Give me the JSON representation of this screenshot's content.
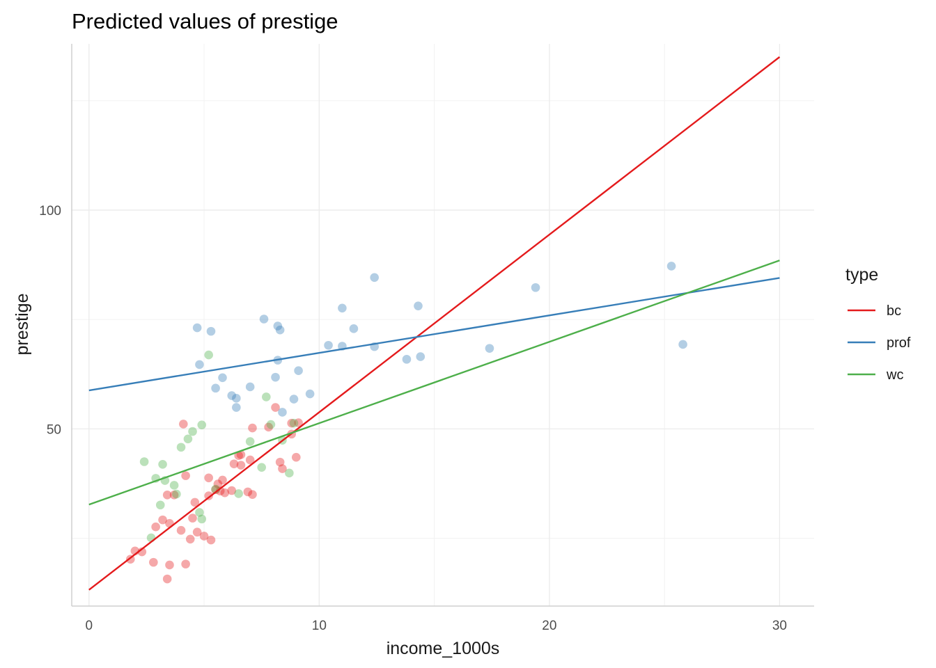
{
  "chart_data": {
    "type": "scatter",
    "title": "Predicted values of prestige",
    "xlabel": "income_1000s",
    "ylabel": "prestige",
    "xlim": [
      -0.75,
      31.5
    ],
    "ylim": [
      9.5,
      138
    ],
    "xticks": [
      0,
      10,
      20,
      30
    ],
    "yticks": [
      50,
      100
    ],
    "grid": true,
    "legend": {
      "title": "type",
      "position": "right",
      "entries": [
        "bc",
        "prof",
        "wc"
      ]
    },
    "colors": {
      "bc": "#e41a1c",
      "prof": "#377eb8",
      "wc": "#4daf4a"
    },
    "series": [
      {
        "name": "bc",
        "line": [
          [
            0,
            13.2
          ],
          [
            30,
            135.0
          ]
        ],
        "points": [
          [
            1.8,
            20.2
          ],
          [
            2.0,
            22.1
          ],
          [
            2.3,
            21.9
          ],
          [
            2.8,
            19.5
          ],
          [
            2.9,
            27.6
          ],
          [
            3.2,
            29.2
          ],
          [
            3.4,
            34.9
          ],
          [
            3.5,
            28.4
          ],
          [
            3.4,
            15.7
          ],
          [
            3.5,
            18.9
          ],
          [
            3.7,
            34.9
          ],
          [
            4.0,
            26.8
          ],
          [
            4.1,
            51.1
          ],
          [
            4.2,
            39.3
          ],
          [
            4.2,
            19.1
          ],
          [
            4.4,
            24.8
          ],
          [
            4.5,
            29.6
          ],
          [
            4.6,
            33.2
          ],
          [
            4.7,
            26.4
          ],
          [
            5.0,
            25.5
          ],
          [
            5.2,
            38.8
          ],
          [
            5.2,
            34.7
          ],
          [
            5.3,
            24.6
          ],
          [
            5.5,
            36.1
          ],
          [
            5.6,
            37.4
          ],
          [
            5.7,
            35.8
          ],
          [
            5.8,
            38.3
          ],
          [
            5.9,
            35.4
          ],
          [
            6.2,
            35.9
          ],
          [
            6.3,
            42.0
          ],
          [
            6.5,
            43.9
          ],
          [
            6.6,
            44.1
          ],
          [
            6.6,
            41.7
          ],
          [
            6.9,
            35.6
          ],
          [
            7.0,
            42.9
          ],
          [
            7.1,
            35.0
          ],
          [
            7.1,
            50.2
          ],
          [
            7.8,
            50.4
          ],
          [
            8.1,
            54.9
          ],
          [
            8.3,
            42.4
          ],
          [
            8.4,
            40.9
          ],
          [
            8.8,
            48.8
          ],
          [
            8.8,
            51.3
          ],
          [
            9.0,
            43.5
          ],
          [
            9.1,
            51.4
          ]
        ]
      },
      {
        "name": "prof",
        "line": [
          [
            0,
            58.8
          ],
          [
            30,
            84.5
          ]
        ],
        "points": [
          [
            4.7,
            73.1
          ],
          [
            4.8,
            64.7
          ],
          [
            5.3,
            72.3
          ],
          [
            5.5,
            59.3
          ],
          [
            5.8,
            61.7
          ],
          [
            6.2,
            57.6
          ],
          [
            6.4,
            57.0
          ],
          [
            6.4,
            54.9
          ],
          [
            7.0,
            59.6
          ],
          [
            7.6,
            75.1
          ],
          [
            8.1,
            61.8
          ],
          [
            8.2,
            73.5
          ],
          [
            8.2,
            65.7
          ],
          [
            8.3,
            72.6
          ],
          [
            8.4,
            53.8
          ],
          [
            8.9,
            56.8
          ],
          [
            9.1,
            63.3
          ],
          [
            9.6,
            58.0
          ],
          [
            10.4,
            69.1
          ],
          [
            11.0,
            77.6
          ],
          [
            11.0,
            68.9
          ],
          [
            11.5,
            72.9
          ],
          [
            12.4,
            84.6
          ],
          [
            12.4,
            68.8
          ],
          [
            13.8,
            65.9
          ],
          [
            14.3,
            78.1
          ],
          [
            14.4,
            66.5
          ],
          [
            17.4,
            68.4
          ],
          [
            19.4,
            82.3
          ],
          [
            25.3,
            87.2
          ],
          [
            25.8,
            69.3
          ]
        ]
      },
      {
        "name": "wc",
        "line": [
          [
            0,
            32.7
          ],
          [
            30,
            88.5
          ]
        ],
        "points": [
          [
            2.4,
            42.5
          ],
          [
            2.7,
            25.1
          ],
          [
            2.9,
            38.7
          ],
          [
            3.1,
            32.6
          ],
          [
            3.2,
            41.9
          ],
          [
            3.3,
            38.2
          ],
          [
            3.7,
            37.1
          ],
          [
            3.8,
            35.1
          ],
          [
            4.0,
            45.8
          ],
          [
            4.3,
            47.7
          ],
          [
            4.5,
            49.4
          ],
          [
            4.8,
            30.9
          ],
          [
            4.9,
            29.4
          ],
          [
            4.9,
            50.9
          ],
          [
            5.2,
            66.9
          ],
          [
            5.5,
            36.2
          ],
          [
            6.5,
            35.2
          ],
          [
            7.0,
            47.1
          ],
          [
            7.5,
            41.2
          ],
          [
            7.7,
            57.3
          ],
          [
            7.9,
            51.0
          ],
          [
            8.4,
            47.4
          ],
          [
            8.7,
            39.9
          ],
          [
            8.9,
            51.3
          ]
        ]
      }
    ]
  }
}
